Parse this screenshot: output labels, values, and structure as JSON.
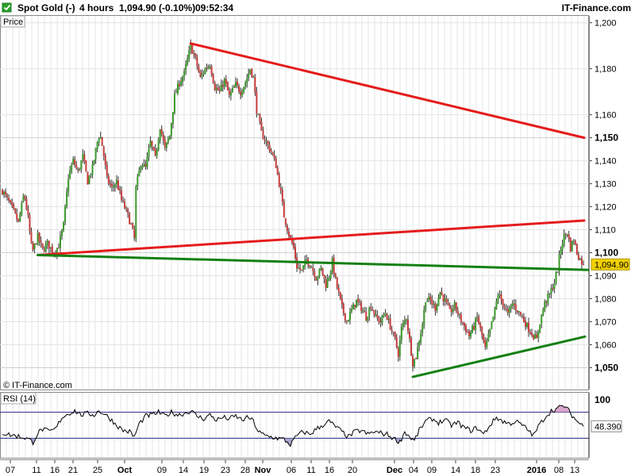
{
  "header": {
    "instrument": "Spot Gold (-)",
    "timeframe": "4 hours",
    "quote": "1,094.90 (-0.10%)",
    "time": "09:52:34",
    "brand": "IT-Finance.com",
    "icon": "checkbox-icon"
  },
  "colors": {
    "up": "#3a9a2a",
    "down": "#c83c3c",
    "wick": "#333333",
    "resistance": "#e51c1c",
    "support": "#138013",
    "rsi_line": "#000000",
    "rsi_fill_low": "#9090c0",
    "rsi_fill_high": "#d090c0",
    "price_marker": "#f0d000",
    "grid": "#e4e4e4"
  },
  "chart_data": [
    {
      "type": "candlestick",
      "panel_label": "Price",
      "watermark": "© IT-Finance.com",
      "x_tick_labels": [
        "07",
        "11",
        "16",
        "21",
        "25",
        "Oct",
        "09",
        "14",
        "19",
        "23",
        "28",
        "Nov",
        "06",
        "11",
        "16",
        "20",
        "Dec",
        "04",
        "09",
        "14",
        "18",
        "23",
        "2016",
        "08",
        "13"
      ],
      "y_ticks": [
        1050,
        1060,
        1070,
        1080,
        1090,
        1100,
        1110,
        1120,
        1130,
        1140,
        1150,
        1160,
        1180,
        1200
      ],
      "y_tick_labels": [
        "1,050",
        "1,060",
        "1,070",
        "1,080",
        "1,090",
        "1,100",
        "1,110",
        "1,120",
        "1,130",
        "1,140",
        "1,150",
        "1,160",
        "1,180",
        "1,200"
      ],
      "y_bold_ticks": [
        1050,
        1100,
        1150
      ],
      "ylim": [
        1040.5,
        1203
      ],
      "last_price": 1094.9,
      "last_price_label": "1,094.90",
      "price_path": [
        [
          0,
          1127
        ],
        [
          8,
          1122
        ],
        [
          14,
          1118
        ],
        [
          20,
          1113
        ],
        [
          27,
          1126
        ],
        [
          32,
          1115
        ],
        [
          37,
          1100
        ],
        [
          44,
          1107
        ],
        [
          50,
          1101
        ],
        [
          56,
          1104
        ],
        [
          64,
          1100
        ],
        [
          70,
          1103
        ],
        [
          76,
          1112
        ],
        [
          82,
          1133
        ],
        [
          88,
          1140
        ],
        [
          94,
          1135
        ],
        [
          100,
          1142
        ],
        [
          106,
          1131
        ],
        [
          112,
          1137
        ],
        [
          118,
          1148
        ],
        [
          121,
          1152
        ],
        [
          125,
          1145
        ],
        [
          130,
          1132
        ],
        [
          136,
          1128
        ],
        [
          142,
          1131
        ],
        [
          148,
          1123
        ],
        [
          154,
          1118
        ],
        [
          160,
          1112
        ],
        [
          164,
          1106
        ],
        [
          166,
          1128
        ],
        [
          172,
          1139
        ],
        [
          178,
          1137
        ],
        [
          184,
          1148
        ],
        [
          190,
          1141
        ],
        [
          196,
          1155
        ],
        [
          202,
          1145
        ],
        [
          208,
          1151
        ],
        [
          214,
          1168
        ],
        [
          220,
          1174
        ],
        [
          226,
          1178
        ],
        [
          230,
          1184
        ],
        [
          234,
          1190
        ],
        [
          240,
          1184
        ],
        [
          246,
          1176
        ],
        [
          252,
          1180
        ],
        [
          258,
          1182
        ],
        [
          264,
          1172
        ],
        [
          270,
          1170
        ],
        [
          276,
          1175
        ],
        [
          282,
          1168
        ],
        [
          290,
          1173
        ],
        [
          296,
          1170
        ],
        [
          302,
          1174
        ],
        [
          308,
          1180
        ],
        [
          312,
          1176
        ],
        [
          316,
          1162
        ],
        [
          322,
          1152
        ],
        [
          328,
          1148
        ],
        [
          334,
          1144
        ],
        [
          340,
          1138
        ],
        [
          346,
          1126
        ],
        [
          350,
          1116
        ],
        [
          356,
          1108
        ],
        [
          362,
          1102
        ],
        [
          366,
          1094
        ],
        [
          372,
          1092
        ],
        [
          378,
          1097
        ],
        [
          384,
          1094
        ],
        [
          390,
          1089
        ],
        [
          396,
          1093
        ],
        [
          402,
          1086
        ],
        [
          406,
          1090
        ],
        [
          410,
          1096
        ],
        [
          414,
          1088
        ],
        [
          418,
          1082
        ],
        [
          422,
          1076
        ],
        [
          428,
          1070
        ],
        [
          434,
          1075
        ],
        [
          440,
          1079
        ],
        [
          446,
          1076
        ],
        [
          452,
          1072
        ],
        [
          458,
          1077
        ],
        [
          464,
          1072
        ],
        [
          470,
          1070
        ],
        [
          476,
          1074
        ],
        [
          482,
          1068
        ],
        [
          488,
          1062
        ],
        [
          492,
          1056
        ],
        [
          496,
          1067
        ],
        [
          502,
          1072
        ],
        [
          506,
          1062
        ],
        [
          510,
          1052
        ],
        [
          514,
          1055
        ],
        [
          518,
          1062
        ],
        [
          522,
          1069
        ],
        [
          526,
          1080
        ],
        [
          532,
          1079
        ],
        [
          538,
          1076
        ],
        [
          544,
          1083
        ],
        [
          550,
          1079
        ],
        [
          556,
          1074
        ],
        [
          562,
          1077
        ],
        [
          568,
          1072
        ],
        [
          574,
          1068
        ],
        [
          580,
          1064
        ],
        [
          586,
          1068
        ],
        [
          590,
          1072
        ],
        [
          596,
          1064
        ],
        [
          600,
          1058
        ],
        [
          606,
          1066
        ],
        [
          612,
          1075
        ],
        [
          616,
          1082
        ],
        [
          622,
          1078
        ],
        [
          628,
          1073
        ],
        [
          634,
          1078
        ],
        [
          640,
          1075
        ],
        [
          646,
          1072
        ],
        [
          652,
          1068
        ],
        [
          656,
          1066
        ],
        [
          660,
          1064
        ],
        [
          664,
          1062
        ],
        [
          668,
          1070
        ],
        [
          674,
          1078
        ],
        [
          680,
          1082
        ],
        [
          686,
          1087
        ],
        [
          690,
          1093
        ],
        [
          694,
          1102
        ],
        [
          698,
          1107
        ],
        [
          702,
          1109
        ],
        [
          706,
          1102
        ],
        [
          710,
          1106
        ],
        [
          714,
          1100
        ],
        [
          718,
          1097
        ],
        [
          722,
          1094.9
        ]
      ],
      "trendlines": [
        {
          "color": "resistance",
          "from": [
            234,
            1191
          ],
          "to": [
            723,
            1150
          ]
        },
        {
          "color": "resistance",
          "from": [
            44,
            1099
          ],
          "to": [
            723,
            1114
          ]
        },
        {
          "color": "support",
          "from": [
            44,
            1099
          ],
          "to": [
            729,
            1092.5
          ]
        },
        {
          "color": "support",
          "from": [
            510,
            1046
          ],
          "to": [
            724,
            1063.5
          ]
        }
      ]
    },
    {
      "type": "line",
      "panel_label": "RSI (14)",
      "indicator": "RSI",
      "period": 14,
      "y_tick_labels": [
        "100"
      ],
      "levels": [
        70,
        30
      ],
      "ylim": [
        0,
        100
      ],
      "last_value": 48.39,
      "last_value_label": "48.390",
      "rsi_path": [
        [
          0,
          38
        ],
        [
          10,
          35
        ],
        [
          20,
          33
        ],
        [
          30,
          30
        ],
        [
          38,
          24
        ],
        [
          44,
          38
        ],
        [
          50,
          44
        ],
        [
          58,
          40
        ],
        [
          66,
          44
        ],
        [
          74,
          62
        ],
        [
          82,
          68
        ],
        [
          90,
          72
        ],
        [
          98,
          66
        ],
        [
          106,
          68
        ],
        [
          114,
          66
        ],
        [
          120,
          72
        ],
        [
          126,
          68
        ],
        [
          134,
          60
        ],
        [
          142,
          50
        ],
        [
          150,
          42
        ],
        [
          158,
          40
        ],
        [
          164,
          32
        ],
        [
          170,
          52
        ],
        [
          178,
          64
        ],
        [
          186,
          66
        ],
        [
          194,
          70
        ],
        [
          202,
          64
        ],
        [
          210,
          70
        ],
        [
          218,
          66
        ],
        [
          226,
          68
        ],
        [
          234,
          72
        ],
        [
          242,
          64
        ],
        [
          250,
          60
        ],
        [
          258,
          66
        ],
        [
          266,
          58
        ],
        [
          274,
          62
        ],
        [
          282,
          60
        ],
        [
          290,
          64
        ],
        [
          298,
          58
        ],
        [
          306,
          62
        ],
        [
          312,
          56
        ],
        [
          318,
          40
        ],
        [
          326,
          34
        ],
        [
          334,
          32
        ],
        [
          342,
          30
        ],
        [
          350,
          28
        ],
        [
          358,
          20
        ],
        [
          366,
          34
        ],
        [
          374,
          40
        ],
        [
          382,
          36
        ],
        [
          390,
          44
        ],
        [
          398,
          50
        ],
        [
          406,
          56
        ],
        [
          414,
          48
        ],
        [
          422,
          40
        ],
        [
          430,
          32
        ],
        [
          438,
          40
        ],
        [
          446,
          42
        ],
        [
          454,
          36
        ],
        [
          462,
          40
        ],
        [
          470,
          38
        ],
        [
          478,
          36
        ],
        [
          486,
          30
        ],
        [
          494,
          24
        ],
        [
          500,
          40
        ],
        [
          506,
          32
        ],
        [
          512,
          26
        ],
        [
          518,
          42
        ],
        [
          526,
          56
        ],
        [
          534,
          60
        ],
        [
          542,
          54
        ],
        [
          550,
          58
        ],
        [
          558,
          50
        ],
        [
          566,
          54
        ],
        [
          574,
          46
        ],
        [
          582,
          42
        ],
        [
          590,
          46
        ],
        [
          598,
          36
        ],
        [
          606,
          50
        ],
        [
          614,
          62
        ],
        [
          622,
          56
        ],
        [
          630,
          52
        ],
        [
          638,
          56
        ],
        [
          646,
          50
        ],
        [
          654,
          42
        ],
        [
          660,
          34
        ],
        [
          666,
          48
        ],
        [
          674,
          62
        ],
        [
          682,
          72
        ],
        [
          690,
          76
        ],
        [
          698,
          80
        ],
        [
          704,
          72
        ],
        [
          710,
          62
        ],
        [
          716,
          54
        ],
        [
          722,
          48.39
        ]
      ]
    }
  ]
}
